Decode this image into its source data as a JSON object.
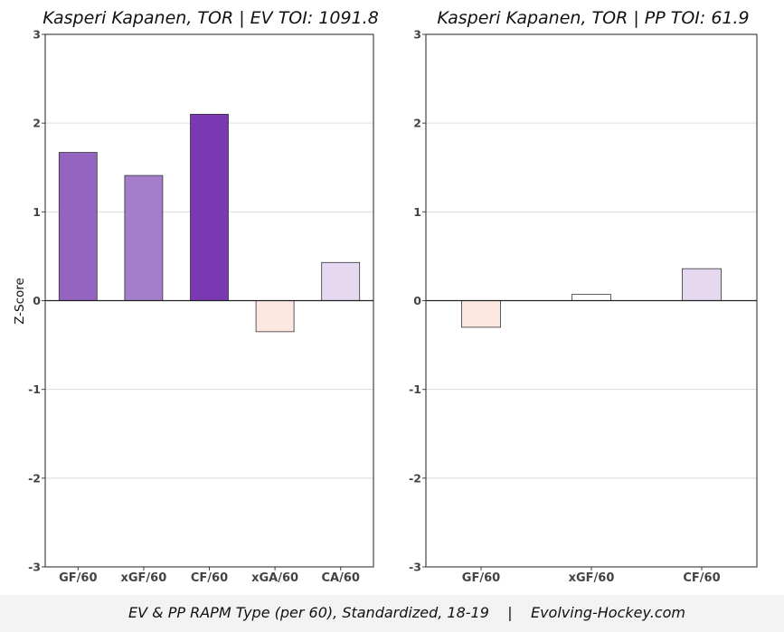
{
  "chart_data": [
    {
      "type": "bar",
      "title": "Kasperi Kapanen, TOR  |  EV TOI: 1091.8",
      "ylabel": "Z-Score",
      "xlabel": "",
      "ylim": [
        -3,
        3
      ],
      "yticks": [
        -3,
        -2,
        -1,
        0,
        1,
        2,
        3
      ],
      "grid": true,
      "categories": [
        "GF/60",
        "xGF/60",
        "CF/60",
        "xGA/60",
        "CA/60"
      ],
      "values": [
        1.67,
        1.41,
        2.1,
        -0.35,
        0.43
      ],
      "colors": [
        "#9564c1",
        "#a57ecb",
        "#7a38b2",
        "#fde7e1",
        "#e6d8f0"
      ]
    },
    {
      "type": "bar",
      "title": "Kasperi Kapanen, TOR  |  PP TOI: 61.9",
      "ylabel": "",
      "xlabel": "",
      "ylim": [
        -3,
        3
      ],
      "yticks": [
        -3,
        -2,
        -1,
        0,
        1,
        2,
        3
      ],
      "grid": true,
      "categories": [
        "GF/60",
        "xGF/60",
        "CF/60"
      ],
      "values": [
        -0.3,
        0.07,
        0.36
      ],
      "colors": [
        "#fde7e1",
        "#ffffff",
        "#e6d8f0"
      ]
    }
  ],
  "caption": "EV & PP RAPM Type (per 60), Standardized, 18-19    |    Evolving-Hockey.com"
}
